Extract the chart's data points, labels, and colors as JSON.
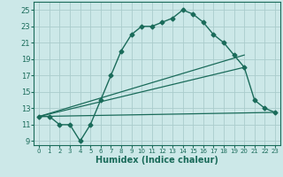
{
  "title": "",
  "xlabel": "Humidex (Indice chaleur)",
  "background_color": "#cce8e8",
  "grid_color": "#aacccc",
  "line_color": "#1a6b5a",
  "xlim": [
    -0.5,
    23.5
  ],
  "ylim": [
    8.5,
    26
  ],
  "xticks": [
    0,
    1,
    2,
    3,
    4,
    5,
    6,
    7,
    8,
    9,
    10,
    11,
    12,
    13,
    14,
    15,
    16,
    17,
    18,
    19,
    20,
    21,
    22,
    23
  ],
  "yticks": [
    9,
    11,
    13,
    15,
    17,
    19,
    21,
    23,
    25
  ],
  "series": [
    {
      "x": [
        0,
        1,
        2,
        3,
        4,
        5,
        6,
        7,
        8,
        9,
        10,
        11,
        12,
        13,
        14,
        15,
        16,
        17,
        18,
        19,
        20,
        21,
        22,
        23
      ],
      "y": [
        12,
        12,
        11,
        11,
        9,
        11,
        14,
        17,
        20,
        22,
        23,
        23,
        23.5,
        24,
        25,
        24.5,
        23.5,
        22,
        21,
        19.5,
        18,
        14,
        13,
        12.5
      ],
      "marker": "D",
      "markersize": 2.5,
      "linewidth": 1.0
    },
    {
      "x": [
        0,
        23
      ],
      "y": [
        12,
        12.5
      ],
      "marker": null,
      "markersize": 0,
      "linewidth": 0.9
    },
    {
      "x": [
        0,
        20
      ],
      "y": [
        12,
        19.5
      ],
      "marker": null,
      "markersize": 0,
      "linewidth": 0.9
    },
    {
      "x": [
        0,
        20
      ],
      "y": [
        12,
        18.0
      ],
      "marker": null,
      "markersize": 0,
      "linewidth": 0.9
    }
  ]
}
